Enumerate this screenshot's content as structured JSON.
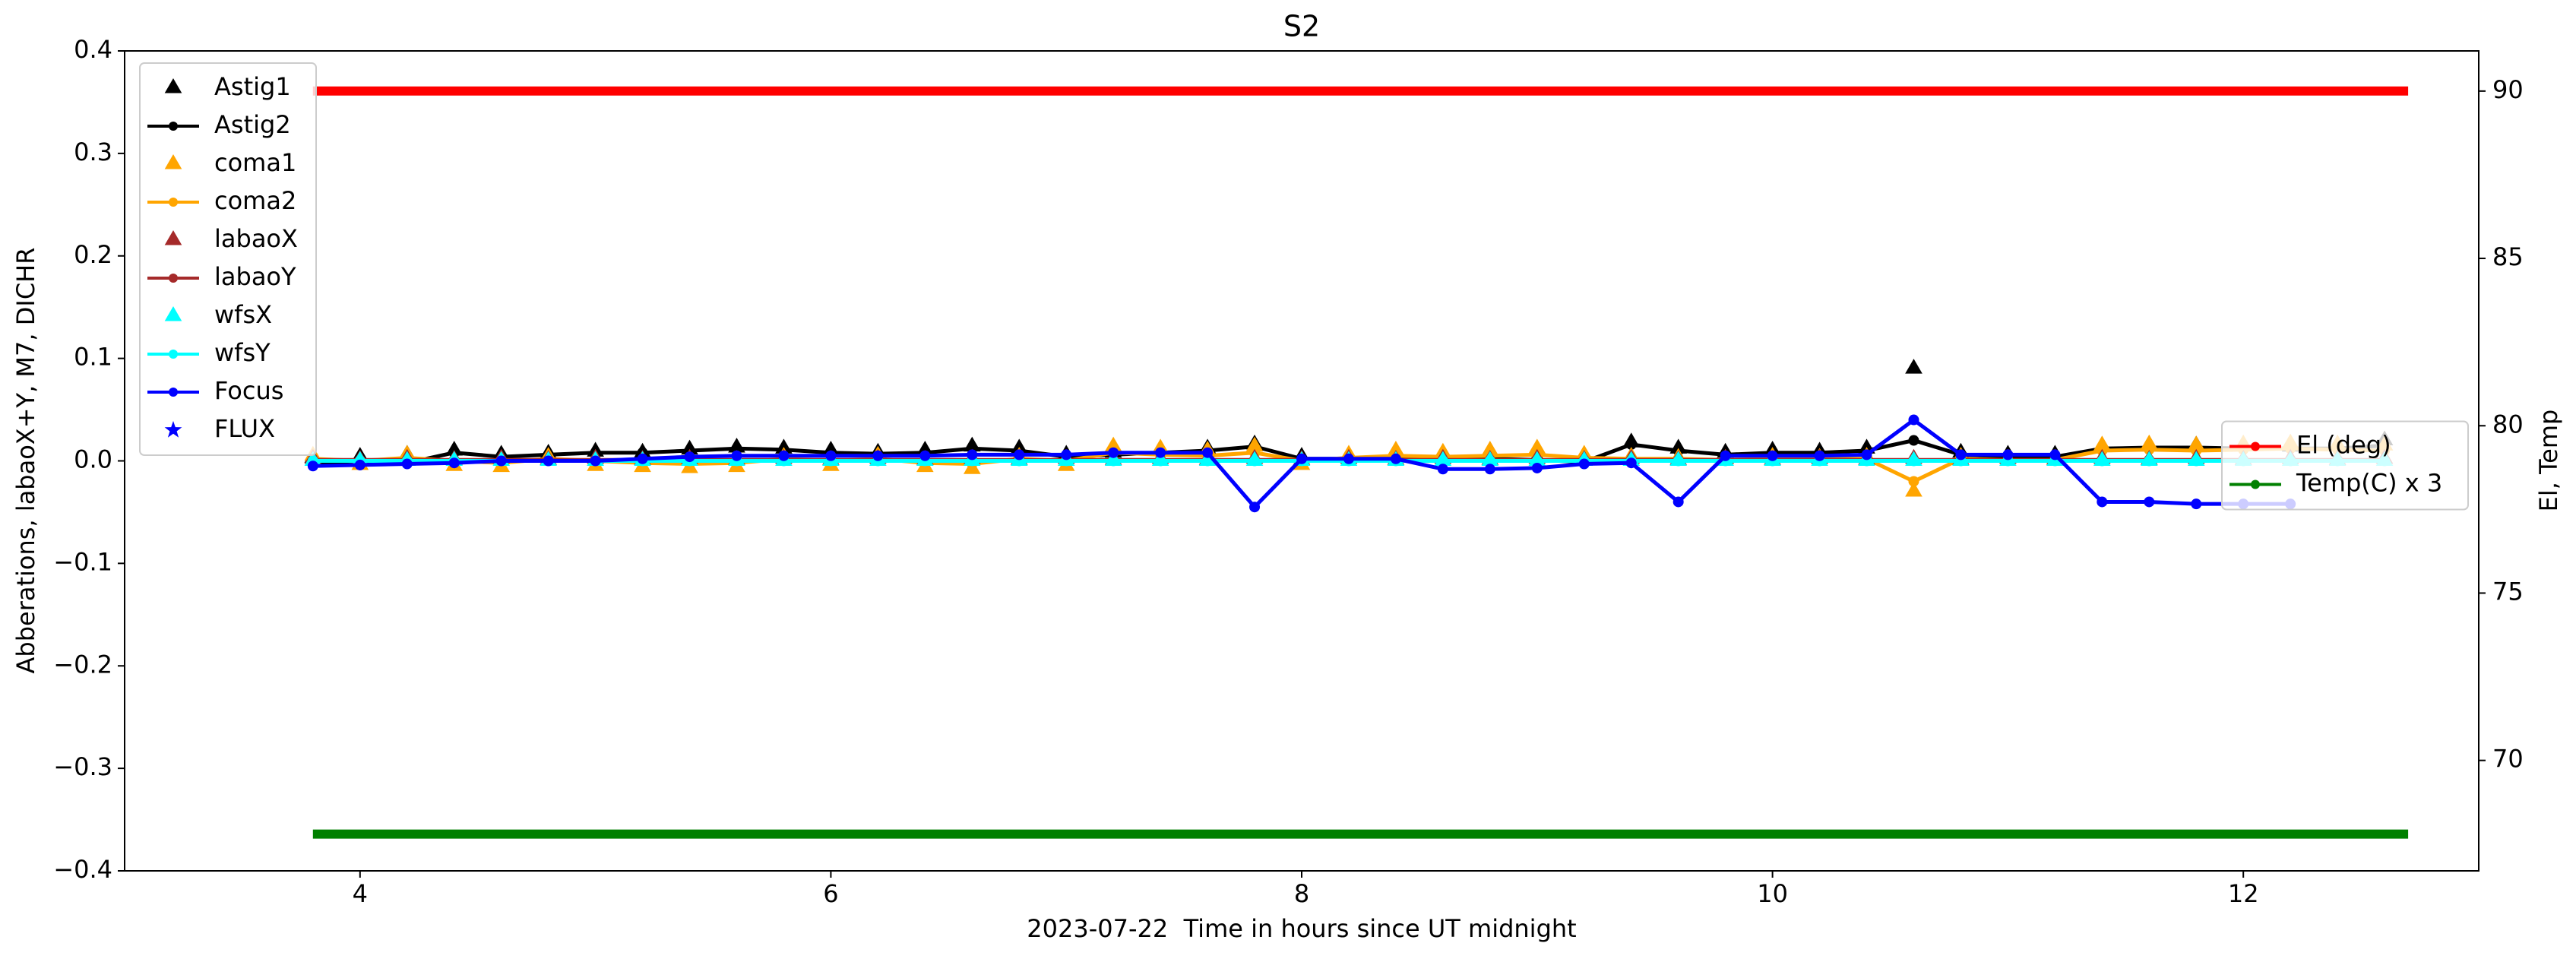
{
  "chart_data": {
    "type": "line",
    "title": "S2",
    "xlabel": "2023-07-22  Time in hours since UT midnight",
    "ylabel": "Abberations, labaoX+Y, M7, DICHR",
    "y2label": "El, Temp",
    "xlim": [
      3,
      13
    ],
    "xticks": [
      4,
      6,
      8,
      10,
      12
    ],
    "ylim": [
      -0.4,
      0.4
    ],
    "yticks": [
      {
        "value": -0.4,
        "label": "−0.4"
      },
      {
        "value": -0.3,
        "label": "−0.3"
      },
      {
        "value": -0.2,
        "label": "−0.2"
      },
      {
        "value": -0.1,
        "label": "−0.1"
      },
      {
        "value": 0,
        "label": "0.0"
      },
      0.1,
      0.2,
      0.3,
      0.4
    ],
    "y2lim": [
      66.7,
      91.2
    ],
    "y2ticks": [
      70,
      75,
      80,
      85,
      90
    ],
    "legend": "upper left",
    "legend2": "center right",
    "x": [
      3.8,
      4.0,
      4.2,
      4.4,
      4.6,
      4.8,
      5.0,
      5.2,
      5.4,
      5.6,
      5.8,
      6.0,
      6.2,
      6.4,
      6.6,
      6.8,
      7.0,
      7.2,
      7.4,
      7.6,
      7.8,
      8.0,
      8.2,
      8.4,
      8.6,
      8.8,
      9.0,
      9.2,
      9.4,
      9.6,
      9.8,
      10.0,
      10.2,
      10.4,
      10.6,
      10.8,
      11.0,
      11.2,
      11.4,
      11.6,
      11.8,
      12.0,
      12.2,
      12.4,
      12.6
    ],
    "series": [
      {
        "name": "Astig1",
        "color": "#000000",
        "marker": "triangle",
        "values": [
          0.003,
          0.004,
          0.006,
          0.01,
          0.006,
          0.007,
          0.009,
          0.008,
          0.011,
          0.013,
          0.012,
          0.01,
          0.008,
          0.01,
          0.014,
          0.012,
          0.006,
          0.008,
          0.01,
          0.012,
          0.016,
          0.004,
          0.004,
          0.005,
          0.003,
          0.004,
          0.003,
          0.002,
          0.018,
          0.012,
          0.008,
          0.01,
          0.009,
          0.012,
          0.09,
          0.008,
          0.006,
          0.006,
          0.014,
          0.015,
          0.015,
          0.015,
          0.014,
          0.015,
          0.02
        ]
      },
      {
        "name": "Astig2",
        "color": "#000000",
        "marker": "line",
        "values": [
          -0.003,
          -0.004,
          -0.002,
          0.008,
          0.004,
          0.006,
          0.008,
          0.008,
          0.01,
          0.012,
          0.011,
          0.008,
          0.007,
          0.008,
          0.012,
          0.01,
          0.004,
          0.006,
          0.008,
          0.01,
          0.014,
          0.002,
          0.002,
          0.003,
          0.001,
          0.002,
          0.001,
          -0.001,
          0.016,
          0.01,
          0.006,
          0.008,
          0.008,
          0.01,
          0.02,
          0.006,
          0.004,
          0.004,
          0.012,
          0.013,
          0.013,
          0.012,
          0.012,
          0.012,
          0.015
        ]
      },
      {
        "name": "coma1",
        "color": "#ffa500",
        "marker": "triangle",
        "values": [
          0.005,
          -0.004,
          0.006,
          -0.005,
          -0.006,
          0.004,
          -0.005,
          -0.006,
          -0.007,
          -0.006,
          0.004,
          -0.005,
          0.005,
          -0.006,
          -0.008,
          0.004,
          -0.005,
          0.014,
          0.012,
          0.01,
          0.014,
          -0.004,
          0.006,
          0.01,
          0.008,
          0.01,
          0.012,
          0.006,
          0.004,
          0.003,
          0.002,
          0.004,
          0.003,
          0.004,
          -0.03,
          0.004,
          0.002,
          0.002,
          0.015,
          0.016,
          0.015,
          0.016,
          0.017,
          0.016,
          0.015
        ]
      },
      {
        "name": "coma2",
        "color": "#ffa500",
        "marker": "line",
        "values": [
          0.002,
          0,
          0.003,
          0,
          -0.002,
          0.002,
          0,
          -0.002,
          -0.003,
          -0.002,
          0.002,
          0,
          0.002,
          -0.002,
          -0.003,
          0.002,
          0,
          0.008,
          0.006,
          0.005,
          0.008,
          0,
          0.003,
          0.005,
          0.004,
          0.005,
          0.006,
          0.003,
          0.002,
          0.002,
          0.001,
          0.002,
          0.002,
          0.002,
          -0.02,
          0.002,
          0.001,
          0.001,
          0.01,
          0.011,
          0.01,
          0.011,
          0.012,
          0.011,
          0.01
        ]
      },
      {
        "name": "labaoX",
        "color": "#a52a2a",
        "marker": "triangle",
        "values": [
          0.002,
          0.001,
          0.002,
          0.001,
          0.002,
          0.001,
          0.002,
          0.001,
          0.002,
          0.001,
          0.002,
          0.001,
          0.002,
          0.001,
          0.002,
          0.001,
          0.002,
          0.001,
          0.002,
          0.001,
          0.002,
          0.001,
          0.002,
          0.001,
          0.002,
          0.001,
          0.002,
          0.001,
          0.002,
          0.001,
          0.002,
          0.001,
          0.002,
          0.001,
          0.002,
          0.001,
          0.002,
          0.001,
          0.002,
          0.001,
          0.002,
          0.001,
          0.002,
          0.001,
          0.002
        ]
      },
      {
        "name": "labaoY",
        "color": "#a52a2a",
        "marker": "line",
        "values": [
          0.001,
          0.001,
          0.001,
          0.001,
          0.001,
          0.001,
          0.001,
          0.001,
          0.001,
          0.001,
          0.001,
          0.001,
          0.001,
          0.001,
          0.001,
          0.001,
          0.001,
          0.001,
          0.001,
          0.001,
          0.001,
          0.001,
          0.001,
          0.001,
          0.001,
          0.001,
          0.001,
          0.001,
          0.001,
          0.001,
          0.001,
          0.001,
          0.001,
          0.001,
          0.001,
          0.001,
          0.001,
          0.001,
          0.001,
          0.001,
          0.001,
          0.001,
          0.001,
          0.001,
          0.001
        ]
      },
      {
        "name": "wfsX",
        "color": "#00ffff",
        "marker": "triangle",
        "values": [
          0,
          0,
          0,
          0,
          0,
          0,
          0,
          0,
          0,
          0,
          0,
          0,
          0,
          0,
          0,
          0,
          0,
          0,
          0,
          0,
          0,
          0,
          0,
          0,
          0,
          0,
          0,
          0,
          0,
          0,
          0,
          0,
          0,
          0,
          0,
          0,
          0,
          0,
          0,
          0,
          0,
          0,
          0,
          0,
          0
        ]
      },
      {
        "name": "wfsY",
        "color": "#00ffff",
        "marker": "line",
        "values": [
          0,
          0,
          0,
          0,
          0,
          0,
          0,
          0,
          0,
          0,
          0,
          0,
          0,
          0,
          0,
          0,
          0,
          0,
          0,
          0,
          0,
          0,
          0,
          0,
          0,
          0,
          0,
          0,
          0,
          0,
          0,
          0,
          0,
          0,
          0,
          0,
          0,
          0,
          0,
          0,
          0,
          0,
          0,
          0,
          0
        ]
      },
      {
        "name": "Focus",
        "color": "#0000ff",
        "marker": "line",
        "values": [
          -0.005,
          -0.004,
          -0.003,
          -0.002,
          0,
          0,
          0,
          0.002,
          0.004,
          0.005,
          0.005,
          0.005,
          0.005,
          0.005,
          0.006,
          0.006,
          0.006,
          0.008,
          0.008,
          0.008,
          -0.045,
          0.002,
          0.002,
          0.002,
          -0.008,
          -0.008,
          -0.007,
          -0.003,
          -0.002,
          -0.04,
          0.005,
          0.005,
          0.005,
          0.006,
          0.04,
          0.006,
          0.006,
          0.006,
          -0.04,
          -0.04,
          -0.042,
          -0.042,
          -0.042,
          null,
          null
        ]
      },
      {
        "name": "FLUX",
        "color": "#0000ff",
        "marker": "star",
        "values": [
          null,
          null,
          null,
          null,
          null,
          null,
          null,
          null,
          null,
          null,
          null,
          null,
          null,
          null,
          null,
          null,
          null,
          null,
          null,
          null,
          null,
          null,
          null,
          null,
          null,
          null,
          null,
          null,
          null,
          null,
          null,
          null,
          null,
          null,
          null,
          null,
          null,
          null,
          null,
          null,
          null,
          null,
          null,
          null,
          null
        ]
      },
      {
        "name": "El (deg)",
        "color": "#ff0000",
        "marker": "line",
        "axis": "y2",
        "x": [
          3.8,
          12.7
        ],
        "values": [
          90,
          90
        ]
      },
      {
        "name": "Temp(C) x 3",
        "color": "#008000",
        "marker": "line",
        "axis": "y2",
        "x": [
          3.8,
          12.7
        ],
        "values": [
          67.8,
          67.8
        ]
      }
    ]
  }
}
